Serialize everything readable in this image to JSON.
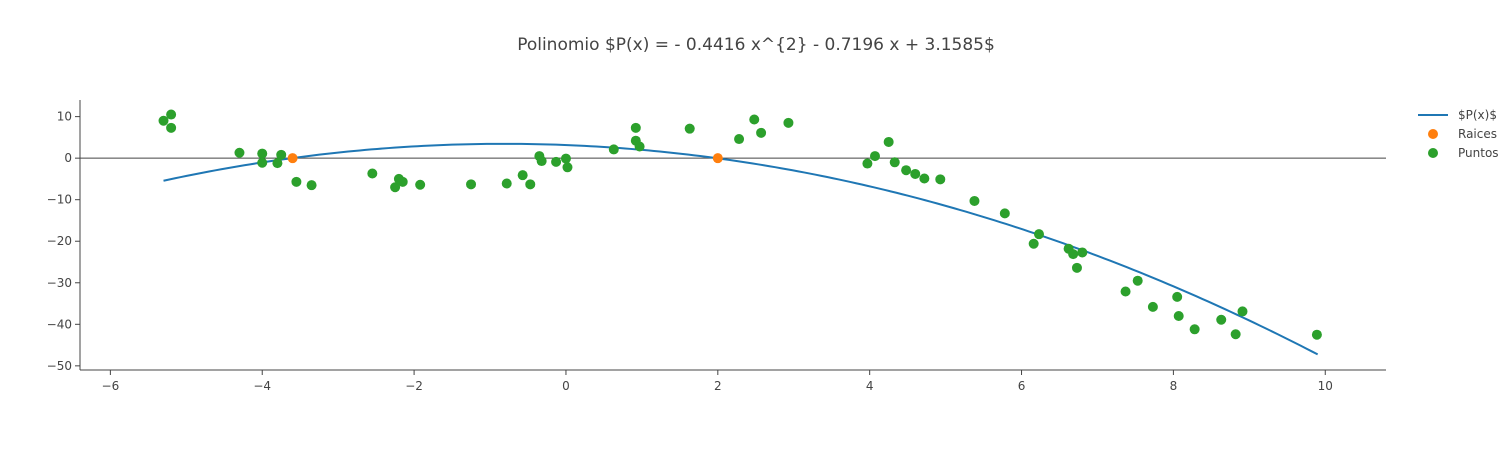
{
  "chart_data": {
    "type": "scatter",
    "title": "Polinomio $P(x) = - 0.4416 x^{2} - 0.7196 x + 3.1585$",
    "xlabel": "",
    "ylabel": "",
    "xlim": [
      -6.4,
      10.8
    ],
    "ylim": [
      -51,
      14
    ],
    "x_ticks": [
      -6,
      -4,
      -2,
      0,
      2,
      4,
      6,
      8,
      10
    ],
    "x_tick_labels": [
      "−6",
      "−4",
      "−2",
      "0",
      "2",
      "4",
      "6",
      "8",
      "10"
    ],
    "y_ticks": [
      -50,
      -40,
      -30,
      -20,
      -10,
      0,
      10
    ],
    "y_tick_labels": [
      "−50",
      "−40",
      "−30",
      "−20",
      "−10",
      "0",
      "10"
    ],
    "zero_line": true,
    "grid": false,
    "legend_position": "top-right",
    "colors": {
      "curve": "#1f77b4",
      "roots": "#ff7f0e",
      "points": "#2ca02c",
      "axis": "#444444"
    },
    "series": [
      {
        "name": "$P(x)$",
        "kind": "line",
        "polynomial": [
          -0.4416,
          -0.7196,
          3.1585
        ],
        "x_range": [
          -5.3,
          9.9
        ]
      },
      {
        "name": "Raices",
        "kind": "scatter",
        "x": [
          -3.6,
          2.0
        ],
        "y": [
          0,
          0
        ]
      },
      {
        "name": "Puntos",
        "kind": "scatter",
        "x": [
          -5.3,
          -5.2,
          -5.2,
          -4.3,
          -4.0,
          -4.0,
          -3.8,
          -3.75,
          -3.55,
          -3.35,
          -2.55,
          -2.25,
          -2.2,
          -2.15,
          -1.92,
          -1.25,
          -0.78,
          -0.57,
          -0.47,
          -0.35,
          -0.32,
          -0.13,
          0.0,
          0.02,
          0.63,
          0.92,
          0.92,
          0.97,
          1.63,
          2.28,
          2.48,
          2.57,
          2.93,
          3.97,
          4.07,
          4.25,
          4.33,
          4.48,
          4.6,
          4.72,
          4.93,
          5.38,
          5.78,
          6.16,
          6.23,
          6.62,
          6.68,
          6.73,
          6.8,
          7.37,
          7.53,
          7.73,
          8.05,
          8.07,
          8.28,
          8.63,
          8.82,
          8.91,
          9.89
        ],
        "y": [
          9.0,
          10.5,
          7.3,
          1.3,
          1.1,
          -1.1,
          -1.2,
          0.8,
          -5.7,
          -6.5,
          -3.7,
          -7.0,
          -5.0,
          -5.7,
          -6.4,
          -6.3,
          -6.1,
          -4.1,
          -6.3,
          0.5,
          -0.7,
          -0.9,
          -0.1,
          -2.2,
          2.1,
          7.3,
          4.2,
          2.8,
          7.1,
          4.6,
          9.3,
          6.1,
          8.5,
          -1.3,
          0.5,
          3.9,
          -1.0,
          -2.9,
          -3.8,
          -4.9,
          -5.1,
          -10.3,
          -13.3,
          -20.6,
          -18.3,
          -21.8,
          -23.1,
          -26.4,
          -22.7,
          -32.1,
          -29.5,
          -35.8,
          -33.4,
          -38.0,
          -41.2,
          -38.9,
          -42.4,
          -36.9,
          -42.5
        ]
      }
    ]
  }
}
